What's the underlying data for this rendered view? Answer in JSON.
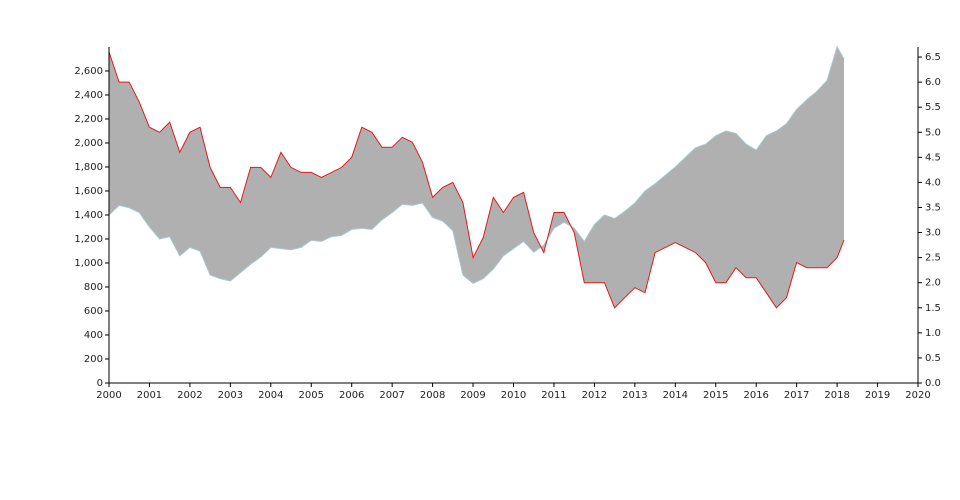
{
  "chart_data": {
    "type": "difference-line",
    "x": [
      2000,
      2000.25,
      2000.5,
      2000.75,
      2001,
      2001.25,
      2001.5,
      2001.75,
      2002,
      2002.25,
      2002.5,
      2002.75,
      2003,
      2003.25,
      2003.5,
      2003.75,
      2004,
      2004.25,
      2004.5,
      2004.75,
      2005,
      2005.25,
      2005.5,
      2005.75,
      2006,
      2006.25,
      2006.5,
      2006.75,
      2007,
      2007.25,
      2007.5,
      2007.75,
      2008,
      2008.25,
      2008.5,
      2008.75,
      2009,
      2009.25,
      2009.5,
      2009.75,
      2010,
      2010.25,
      2010.5,
      2010.75,
      2011,
      2011.25,
      2011.5,
      2011.75,
      2012,
      2012.25,
      2012.5,
      2012.75,
      2013,
      2013.25,
      2013.5,
      2013.75,
      2014,
      2014.25,
      2014.5,
      2014.75,
      2015,
      2015.25,
      2015.5,
      2015.75,
      2016,
      2016.25,
      2016.5,
      2016.75,
      2017,
      2017.25,
      2017.5,
      2017.75,
      2018,
      2018.17
    ],
    "series": [
      {
        "color": "#a9c6cf",
        "values": [
          1400,
          1480,
          1460,
          1420,
          1300,
          1200,
          1220,
          1060,
          1130,
          1100,
          900,
          870,
          850,
          920,
          990,
          1050,
          1130,
          1120,
          1110,
          1130,
          1190,
          1180,
          1220,
          1230,
          1280,
          1290,
          1280,
          1360,
          1420,
          1490,
          1480,
          1500,
          1380,
          1350,
          1270,
          900,
          830,
          870,
          950,
          1060,
          1120,
          1180,
          1090,
          1150,
          1290,
          1340,
          1290,
          1180,
          1320,
          1400,
          1370,
          1430,
          1500,
          1600,
          1660,
          1730,
          1800,
          1880,
          1960,
          1990,
          2060,
          2100,
          2080,
          1990,
          1940,
          2060,
          2100,
          2160,
          2280,
          2360,
          2430,
          2520,
          2800,
          2700
        ]
      },
      {
        "color": "#e31a1c",
        "axis": "y2",
        "values": [
          6.6,
          6.0,
          6.0,
          5.6,
          5.1,
          5.0,
          5.2,
          4.6,
          5.0,
          5.1,
          4.3,
          3.9,
          3.9,
          3.6,
          4.3,
          4.3,
          4.1,
          4.6,
          4.3,
          4.2,
          4.2,
          4.1,
          4.2,
          4.3,
          4.5,
          5.1,
          5.0,
          4.7,
          4.7,
          4.9,
          4.8,
          4.4,
          3.7,
          3.9,
          4.0,
          3.6,
          2.5,
          2.9,
          3.7,
          3.4,
          3.7,
          3.8,
          3.0,
          2.6,
          3.4,
          3.4,
          3.0,
          2.0,
          2.0,
          2.0,
          1.5,
          1.7,
          1.9,
          1.8,
          2.6,
          2.7,
          2.8,
          2.7,
          2.6,
          2.4,
          2.0,
          2.0,
          2.3,
          2.1,
          2.1,
          1.8,
          1.5,
          1.7,
          2.4,
          2.3,
          2.3,
          2.3,
          2.5,
          2.85
        ]
      }
    ],
    "fill_color": "#b0b0b0",
    "xlim": [
      2000,
      2020
    ],
    "xticks": [
      2000,
      2001,
      2002,
      2003,
      2004,
      2005,
      2006,
      2007,
      2008,
      2009,
      2010,
      2011,
      2012,
      2013,
      2014,
      2015,
      2016,
      2017,
      2018,
      2019,
      2020
    ],
    "ylim": [
      0,
      2800
    ],
    "yticks": [
      0,
      200,
      400,
      600,
      800,
      {
        "value": 1000,
        "label": "1,000"
      },
      {
        "value": 1200,
        "label": "1,200"
      },
      {
        "value": 1400,
        "label": "1,400"
      },
      {
        "value": 1600,
        "label": "1,600"
      },
      {
        "value": 1800,
        "label": "1,800"
      },
      {
        "value": 2000,
        "label": "2,000"
      },
      {
        "value": 2200,
        "label": "2,200"
      },
      {
        "value": 2400,
        "label": "2,400"
      },
      {
        "value": 2600,
        "label": "2,600"
      }
    ],
    "y2lim": [
      0,
      6.7
    ],
    "y2ticks": [
      {
        "value": 0,
        "label": "0.0"
      },
      {
        "value": 0.5,
        "label": "0.5"
      },
      {
        "value": 1,
        "label": "1.0"
      },
      {
        "value": 1.5,
        "label": "1.5"
      },
      {
        "value": 2,
        "label": "2.0"
      },
      {
        "value": 2.5,
        "label": "2.5"
      },
      {
        "value": 3,
        "label": "3.0"
      },
      {
        "value": 3.5,
        "label": "3.5"
      },
      {
        "value": 4,
        "label": "4.0"
      },
      {
        "value": 4.5,
        "label": "4.5"
      },
      {
        "value": 5,
        "label": "5.0"
      },
      {
        "value": 5.5,
        "label": "5.5"
      },
      {
        "value": 6,
        "label": "6.0"
      },
      {
        "value": 6.5,
        "label": "6.5"
      }
    ]
  }
}
